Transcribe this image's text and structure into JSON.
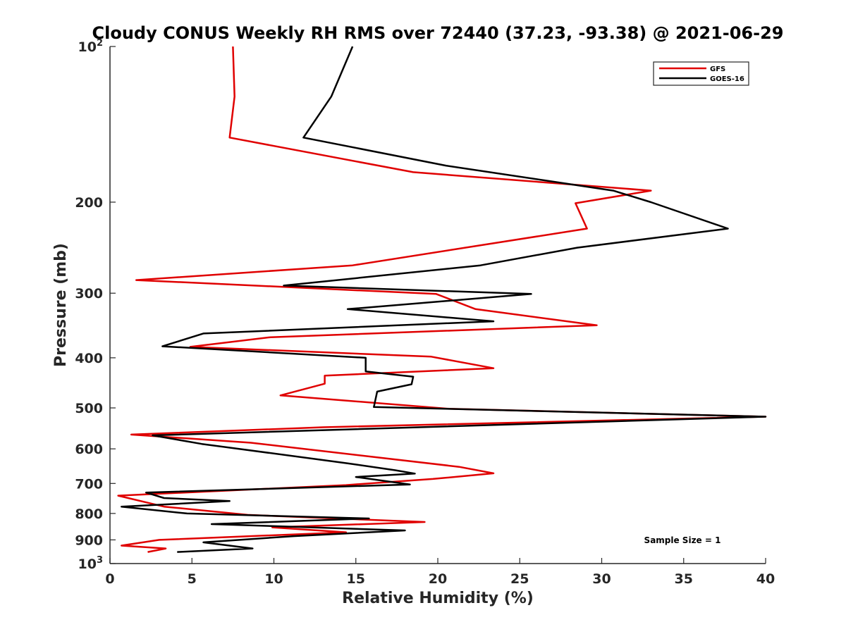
{
  "chart_data": {
    "type": "line",
    "title": "Cloudy CONUS Weekly RH RMS over 72440 (37.23, -93.38) @ 2021-06-29",
    "xlabel": "Relative Humidity (%)",
    "ylabel": "Pressure (mb)",
    "xlim": [
      0,
      40
    ],
    "ylim": [
      100,
      1000
    ],
    "y_scale": "log",
    "y_reversed": true,
    "grid": false,
    "legend_position": "top-right",
    "x_ticks": [
      0,
      5,
      10,
      15,
      20,
      25,
      30,
      35,
      40
    ],
    "y_ticks": [
      {
        "value": 100,
        "base": "10",
        "exp": "2"
      },
      {
        "value": 200,
        "label": "200"
      },
      {
        "value": 300,
        "label": "300"
      },
      {
        "value": 400,
        "label": "400"
      },
      {
        "value": 500,
        "label": "500"
      },
      {
        "value": 600,
        "label": "600"
      },
      {
        "value": 700,
        "label": "700"
      },
      {
        "value": 800,
        "label": "800"
      },
      {
        "value": 900,
        "label": "900"
      },
      {
        "value": 1000,
        "base": "10",
        "exp": "3"
      }
    ],
    "series": [
      {
        "name": "GFS",
        "color": "#e00000",
        "points": [
          [
            7.5,
            100
          ],
          [
            7.6,
            125
          ],
          [
            7.3,
            150
          ],
          [
            18.5,
            175
          ],
          [
            33.0,
            190
          ],
          [
            28.4,
            201
          ],
          [
            29.1,
            225
          ],
          [
            14.8,
            265
          ],
          [
            1.6,
            283
          ],
          [
            19.9,
            301
          ],
          [
            22.3,
            322
          ],
          [
            29.7,
            346
          ],
          [
            9.8,
            365
          ],
          [
            4.9,
            381
          ],
          [
            19.6,
            398
          ],
          [
            23.4,
            419
          ],
          [
            13.1,
            433
          ],
          [
            13.1,
            449
          ],
          [
            10.4,
            473
          ],
          [
            20.7,
            502
          ],
          [
            40.0,
            520
          ],
          [
            13.0,
            545
          ],
          [
            1.3,
            563
          ],
          [
            8.6,
            584
          ],
          [
            21.3,
            650
          ],
          [
            23.4,
            669
          ],
          [
            19.7,
            686
          ],
          [
            14.4,
            705
          ],
          [
            0.5,
            739
          ],
          [
            3.3,
            776
          ],
          [
            8.4,
            805
          ],
          [
            19.2,
            831
          ],
          [
            9.9,
            851
          ],
          [
            14.4,
            870
          ],
          [
            3.0,
            900
          ],
          [
            0.7,
            923
          ],
          [
            3.4,
            935
          ],
          [
            2.3,
            950
          ]
        ]
      },
      {
        "name": "GOES-16",
        "color": "#000000",
        "points": [
          [
            14.8,
            100
          ],
          [
            13.5,
            125
          ],
          [
            11.8,
            150
          ],
          [
            20.5,
            170
          ],
          [
            30.7,
            190
          ],
          [
            33.0,
            200
          ],
          [
            37.7,
            225
          ],
          [
            28.5,
            245
          ],
          [
            22.6,
            265
          ],
          [
            10.6,
            290
          ],
          [
            25.7,
            301
          ],
          [
            14.5,
            322
          ],
          [
            23.4,
            340
          ],
          [
            5.7,
            359
          ],
          [
            3.2,
            380
          ],
          [
            15.6,
            400
          ],
          [
            15.6,
            425
          ],
          [
            18.5,
            435
          ],
          [
            18.4,
            450
          ],
          [
            16.3,
            465
          ],
          [
            16.1,
            498
          ],
          [
            40.0,
            520
          ],
          [
            2.6,
            565
          ],
          [
            5.6,
            587
          ],
          [
            14.5,
            640
          ],
          [
            17.4,
            660
          ],
          [
            18.6,
            670
          ],
          [
            15.0,
            680
          ],
          [
            18.3,
            703
          ],
          [
            2.2,
            729
          ],
          [
            3.3,
            747
          ],
          [
            7.3,
            757
          ],
          [
            0.7,
            776
          ],
          [
            4.7,
            800
          ],
          [
            15.8,
            818
          ],
          [
            6.2,
            839
          ],
          [
            18.0,
            863
          ],
          [
            11.2,
            885
          ],
          [
            5.7,
            910
          ],
          [
            8.7,
            935
          ],
          [
            4.1,
            950
          ]
        ]
      }
    ],
    "annotations": [
      "Sample Size = 1"
    ]
  }
}
